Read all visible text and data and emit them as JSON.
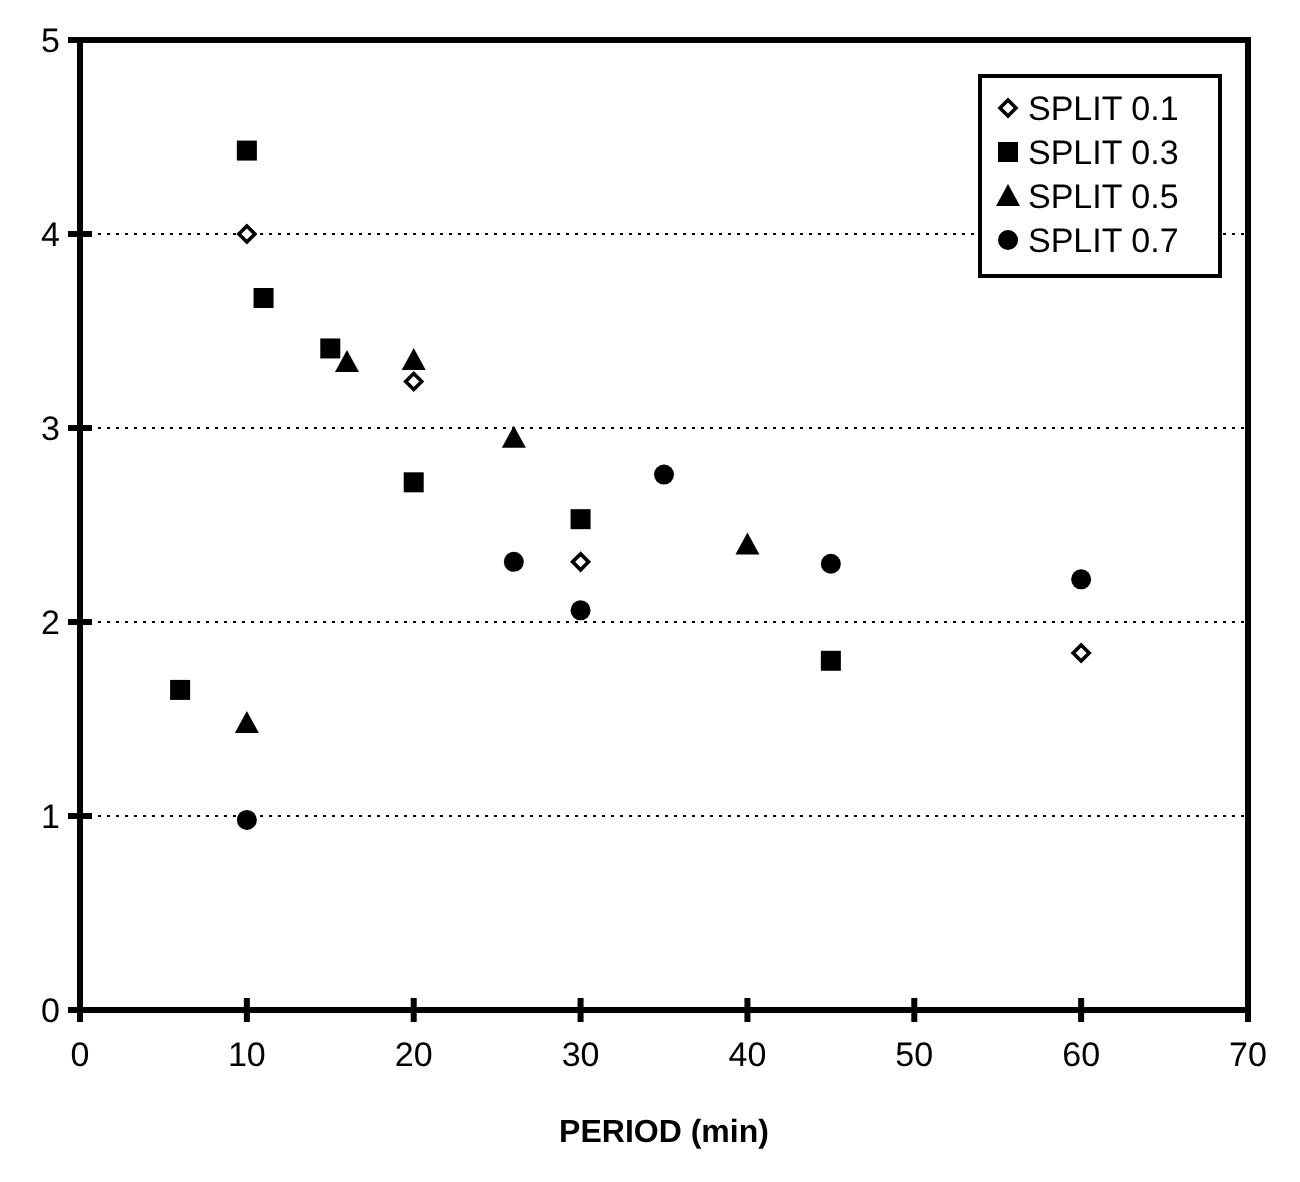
{
  "chart_data": {
    "type": "scatter",
    "xlabel": "PERIOD (min)",
    "xlim": [
      0,
      70
    ],
    "xticks": [
      0,
      10,
      20,
      30,
      40,
      50,
      60,
      70
    ],
    "ylim": [
      0,
      5
    ],
    "yticks": [
      0,
      1,
      2,
      3,
      4,
      5
    ],
    "grid": "y",
    "legend": "top right",
    "series": [
      {
        "name": "SPLIT 0.1",
        "color": "#000000",
        "marker": "diamond",
        "x": [
          10,
          20,
          30,
          60
        ],
        "values": [
          4.0,
          3.24,
          2.31,
          1.84
        ]
      },
      {
        "name": "SPLIT 0.3",
        "color": "#000000",
        "marker": "square",
        "x": [
          6,
          10,
          11,
          15,
          20,
          30,
          45
        ],
        "values": [
          1.65,
          4.43,
          3.67,
          3.41,
          2.72,
          2.53,
          1.8
        ]
      },
      {
        "name": "SPLIT 0.5",
        "color": "#000000",
        "marker": "triangle",
        "x": [
          10,
          16,
          20,
          26,
          40
        ],
        "values": [
          1.48,
          3.34,
          3.35,
          2.95,
          2.4
        ]
      },
      {
        "name": "SPLIT 0.7",
        "color": "#000000",
        "marker": "circle",
        "x": [
          10,
          26,
          30,
          35,
          45,
          60
        ],
        "values": [
          0.98,
          2.31,
          2.06,
          2.76,
          2.3,
          2.22
        ]
      }
    ]
  }
}
